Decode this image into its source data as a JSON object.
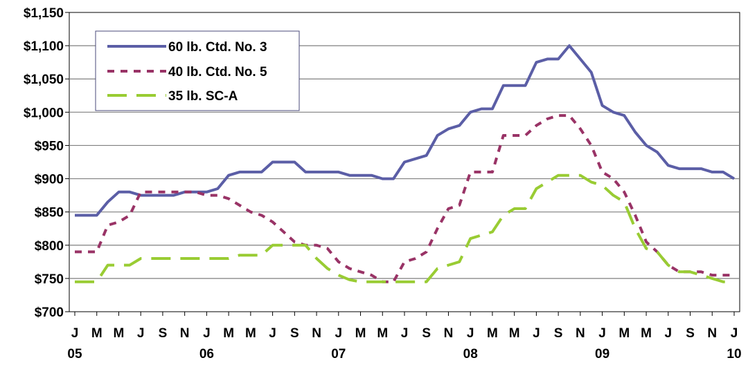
{
  "chart_data": {
    "type": "line",
    "title": "",
    "xlabel": "",
    "ylabel": "",
    "ylim": [
      700,
      1150
    ],
    "y_ticks": [
      700,
      750,
      800,
      850,
      900,
      950,
      1000,
      1050,
      1100,
      1150
    ],
    "y_tick_labels": [
      "$700",
      "$750",
      "$800",
      "$850",
      "$900",
      "$950",
      "$1,000",
      "$1,050",
      "$1,100",
      "$1,150"
    ],
    "x_month_labels": [
      "J",
      "M",
      "M",
      "J",
      "S",
      "N",
      "J",
      "M",
      "M",
      "J",
      "S",
      "N",
      "J",
      "M",
      "M",
      "J",
      "S",
      "N",
      "J",
      "M",
      "M",
      "J",
      "S",
      "N",
      "J",
      "M",
      "M",
      "J",
      "S",
      "N",
      "J"
    ],
    "x_year_labels": [
      {
        "label": "05",
        "month_index": 0
      },
      {
        "label": "06",
        "month_index": 12
      },
      {
        "label": "07",
        "month_index": 24
      },
      {
        "label": "08",
        "month_index": 36
      },
      {
        "label": "09",
        "month_index": 48
      },
      {
        "label": "10",
        "month_index": 60
      }
    ],
    "grid": true,
    "legend_position": "top-left",
    "series": [
      {
        "name": "60 lb. Ctd. No. 3",
        "color": "#5b5ea6",
        "style": "solid",
        "values": [
          845,
          845,
          845,
          865,
          880,
          880,
          875,
          875,
          875,
          875,
          880,
          880,
          880,
          885,
          905,
          910,
          910,
          910,
          925,
          925,
          925,
          910,
          910,
          910,
          910,
          905,
          905,
          905,
          900,
          900,
          925,
          930,
          935,
          965,
          975,
          980,
          1000,
          1005,
          1005,
          1040,
          1040,
          1040,
          1075,
          1080,
          1080,
          1100,
          1080,
          1060,
          1010,
          1000,
          995,
          970,
          950,
          940,
          920,
          915,
          915,
          915,
          910,
          910,
          900
        ]
      },
      {
        "name": "40 lb. Ctd. No. 5",
        "color": "#993366",
        "style": "dashed",
        "values": [
          790,
          790,
          790,
          830,
          835,
          845,
          880,
          880,
          880,
          880,
          880,
          880,
          875,
          875,
          870,
          860,
          850,
          845,
          835,
          820,
          805,
          800,
          800,
          795,
          775,
          765,
          760,
          755,
          745,
          745,
          775,
          780,
          790,
          825,
          855,
          860,
          910,
          910,
          910,
          965,
          965,
          965,
          980,
          990,
          995,
          995,
          975,
          950,
          910,
          900,
          880,
          845,
          805,
          790,
          770,
          760,
          760,
          760,
          755,
          755,
          755
        ]
      },
      {
        "name": "35 lb. SC-A",
        "color": "#99cc33",
        "style": "longdash",
        "values": [
          745,
          745,
          745,
          770,
          770,
          770,
          780,
          780,
          780,
          780,
          780,
          780,
          780,
          780,
          780,
          785,
          785,
          785,
          800,
          800,
          800,
          800,
          780,
          765,
          755,
          748,
          745,
          745,
          745,
          745,
          745,
          745,
          745,
          765,
          770,
          775,
          810,
          815,
          820,
          845,
          855,
          855,
          885,
          895,
          905,
          905,
          905,
          895,
          890,
          875,
          865,
          825,
          795,
          790,
          770,
          760,
          760,
          755,
          750,
          745,
          745
        ]
      }
    ]
  }
}
